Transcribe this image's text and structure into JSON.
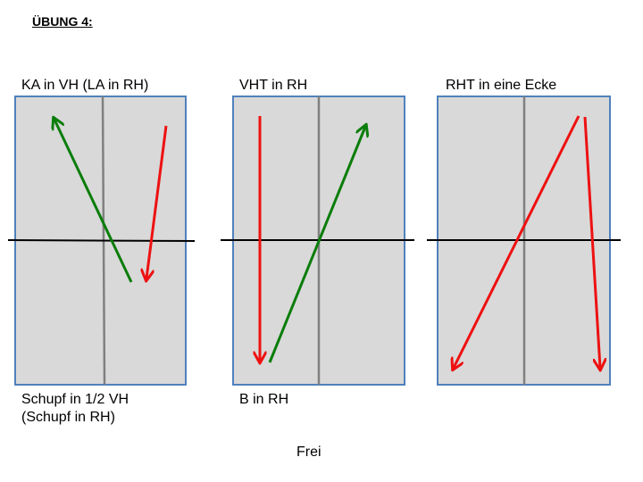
{
  "title": "ÜBUNG 4:",
  "panels": [
    {
      "label_top": "KA in VH (LA in RH)",
      "label_bottom_1": "Schupf in 1/2 VH",
      "label_bottom_2": "(Schupf in RH)",
      "arrows": [
        {
          "color": "green",
          "from": "lower-center",
          "to": "upper-left"
        },
        {
          "color": "red",
          "from": "upper-right",
          "to": "center-right"
        }
      ]
    },
    {
      "label_top": "VHT in RH",
      "label_bottom_1": "B in RH",
      "arrows": [
        {
          "color": "red",
          "from": "upper-left",
          "to": "lower-left"
        },
        {
          "color": "green",
          "from": "lower-left",
          "to": "upper-right"
        }
      ]
    },
    {
      "label_top": "RHT in eine Ecke",
      "arrows": [
        {
          "color": "red",
          "from": "upper-right",
          "to": "lower-left"
        },
        {
          "color": "red",
          "from": "upper-right",
          "to": "lower-right"
        }
      ]
    }
  ],
  "footer": "Frei",
  "colors": {
    "panel_fill": "#d9d9d9",
    "panel_border": "#4f81bd",
    "center_line": "#808080",
    "net": "#000000",
    "green": "#0a7d0a",
    "red": "#ee1111"
  }
}
